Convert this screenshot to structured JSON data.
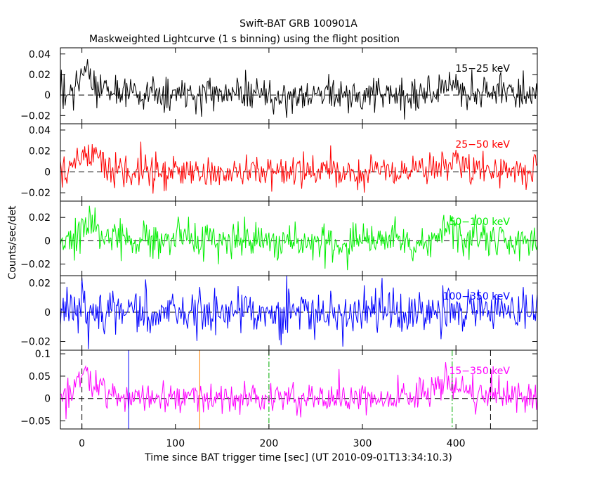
{
  "title": "Swift-BAT GRB 100901A",
  "subtitle": "Maskweighted Lightcurve (1 s binning) using the flight position",
  "chart_data": {
    "type": "line",
    "xlabel": "Time since BAT trigger time [sec] (UT 2010-09-01T13:34:10.3)",
    "ylabel": "Counts/sec/det",
    "xlim": [
      -23,
      487
    ],
    "x_ticks": [
      0,
      100,
      200,
      300,
      400
    ],
    "x_tick_labels": [
      "0",
      "100",
      "200",
      "300",
      "400"
    ],
    "grid": false,
    "panels": [
      {
        "name": "15−25 keV",
        "color": "#000000",
        "ylim": [
          -0.028,
          0.046
        ],
        "y_ticks": [
          -0.02,
          0,
          0.02,
          0.04
        ],
        "y_tick_labels": [
          "−0.02",
          "0",
          "0.02",
          "0.04"
        ],
        "noise_sigma": 0.0085,
        "features": [
          {
            "t": 2,
            "amp": 0.028,
            "width": 6
          },
          {
            "t": 390,
            "amp": 0.01,
            "width": 14
          }
        ]
      },
      {
        "name": "25−50 keV",
        "color": "#ff0000",
        "ylim": [
          -0.028,
          0.046
        ],
        "y_ticks": [
          -0.02,
          0,
          0.02,
          0.04
        ],
        "y_tick_labels": [
          "−0.02",
          "0",
          "0.02",
          "0.04"
        ],
        "noise_sigma": 0.008,
        "features": [
          {
            "t": 3,
            "amp": 0.024,
            "width": 7
          },
          {
            "t": 390,
            "amp": 0.013,
            "width": 15
          }
        ]
      },
      {
        "name": "50−100 keV",
        "color": "#00ee00",
        "ylim": [
          -0.03,
          0.034
        ],
        "y_ticks": [
          -0.02,
          0,
          0.02
        ],
        "y_tick_labels": [
          "−0.02",
          "0",
          "0.02"
        ],
        "noise_sigma": 0.008,
        "features": [
          {
            "t": 3,
            "amp": 0.017,
            "width": 7
          },
          {
            "t": 390,
            "amp": 0.01,
            "width": 14
          }
        ]
      },
      {
        "name": "100−350 keV",
        "color": "#0000ff",
        "ylim": [
          -0.026,
          0.025
        ],
        "y_ticks": [
          -0.02,
          0,
          0.02
        ],
        "y_tick_labels": [
          "−0.02",
          "0",
          "0.02"
        ],
        "noise_sigma": 0.0078,
        "features": [
          {
            "t": 220,
            "amp": 0.006,
            "width": 4
          }
        ]
      },
      {
        "name": "15−350 keV",
        "color": "#ff00ff",
        "ylim": [
          -0.068,
          0.108
        ],
        "y_ticks": [
          -0.05,
          0,
          0.05,
          0.1
        ],
        "y_tick_labels": [
          "−0.05",
          "0",
          "0.05",
          "0.1"
        ],
        "noise_sigma": 0.017,
        "features": [
          {
            "t": 2,
            "amp": 0.07,
            "width": 7
          },
          {
            "t": 390,
            "amp": 0.038,
            "width": 14
          }
        ]
      }
    ],
    "markers": [
      {
        "x": 0,
        "color": "#000000",
        "style": "dashed",
        "panel": 5
      },
      {
        "x": 50,
        "color": "#0000ff",
        "style": "solid",
        "panel": 5
      },
      {
        "x": 126,
        "color": "#ff8000",
        "style": "solid",
        "panel": 5
      },
      {
        "x": 200,
        "color": "#00aa00",
        "style": "dashdot",
        "panel": 5
      },
      {
        "x": 396,
        "color": "#00aa00",
        "style": "dashdot",
        "panel": 5
      },
      {
        "x": 437,
        "color": "#000000",
        "style": "dashed",
        "panel": 5
      }
    ]
  }
}
